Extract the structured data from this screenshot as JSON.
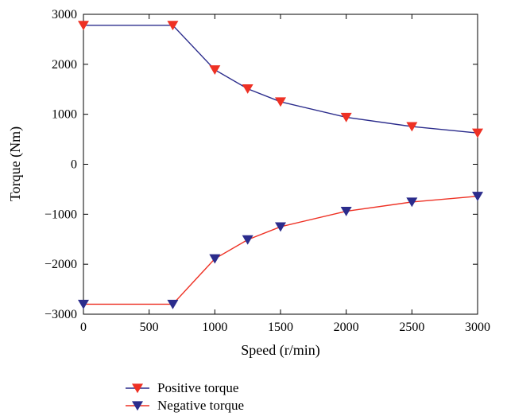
{
  "chart_data": {
    "type": "line",
    "title": "",
    "xlabel": "Speed (r/min)",
    "ylabel": "Torque (Nm)",
    "xlim": [
      0,
      3000
    ],
    "ylim": [
      -3000,
      3000
    ],
    "xticks": [
      "0",
      "500",
      "1000",
      "1500",
      "2000",
      "2500",
      "3000"
    ],
    "yticks": [
      "3000",
      "2000",
      "1000",
      "0",
      "−1000",
      "−2000",
      "−3000"
    ],
    "grid": false,
    "legend_position": "bottom-left",
    "series": [
      {
        "name": "Positive torque",
        "line_color": "#2b2c8c",
        "marker": "triangle-down",
        "marker_color": "#ee3124",
        "x": [
          0,
          680,
          1000,
          1250,
          1500,
          2000,
          2500,
          3000
        ],
        "y": [
          2780,
          2780,
          1890,
          1510,
          1250,
          940,
          755,
          625
        ]
      },
      {
        "name": "Negative torque",
        "line_color": "#ee3124",
        "marker": "triangle-down",
        "marker_color": "#2b2c8c",
        "x": [
          0,
          680,
          1000,
          1250,
          1500,
          2000,
          2500,
          3000
        ],
        "y": [
          -2800,
          -2800,
          -1890,
          -1510,
          -1250,
          -940,
          -755,
          -640
        ]
      }
    ]
  }
}
